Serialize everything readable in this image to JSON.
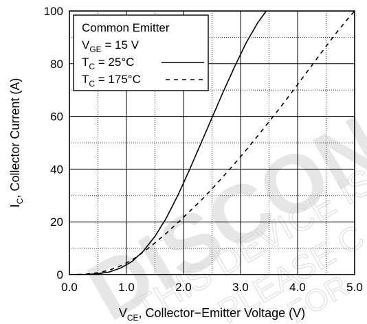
{
  "chart_data": {
    "type": "line",
    "title": "",
    "xlabel": {
      "main": "V",
      "sub": "CE",
      "rest": ", Collector−Emitter Voltage (V)"
    },
    "ylabel": {
      "main": "I",
      "sub": "C",
      "rest": ", Collector Current (A)"
    },
    "xlim": [
      0,
      5
    ],
    "ylim": [
      0,
      100
    ],
    "x_ticks": [
      "0.0",
      "1.0",
      "2.0",
      "3.0",
      "4.0",
      "5.0"
    ],
    "y_ticks": [
      "0",
      "20",
      "40",
      "60",
      "80",
      "100"
    ],
    "grid": "major solid, minor dotted",
    "legend": {
      "placement": "top-left",
      "header": "Common Emitter",
      "condition": {
        "main": "V",
        "sub": "GE",
        "rest": " = 15 V"
      }
    },
    "series": [
      {
        "name": {
          "main": "T",
          "sub": "C",
          "rest": " = 25°C"
        },
        "style": "solid",
        "x": [
          0.0,
          0.3,
          0.5,
          0.7,
          0.9,
          1.1,
          1.3,
          1.5,
          1.7,
          1.9,
          2.1,
          2.3,
          2.5,
          2.7,
          2.9,
          3.1,
          3.3,
          3.45
        ],
        "y": [
          0.0,
          0.05,
          0.3,
          1.0,
          2.5,
          5.0,
          9.0,
          14.5,
          21.5,
          30.0,
          39.5,
          49.5,
          59.5,
          69.5,
          79.0,
          88.0,
          95.5,
          100
        ]
      },
      {
        "name": {
          "main": "T",
          "sub": "C",
          "rest": " = 175°C"
        },
        "style": "dashed",
        "x": [
          0.0,
          0.3,
          0.5,
          0.7,
          0.9,
          1.1,
          1.3,
          1.5,
          1.7,
          1.9,
          2.1,
          2.3,
          2.5,
          2.7,
          2.9,
          3.1,
          3.3,
          3.5,
          3.7,
          3.9,
          4.1,
          4.3,
          4.5,
          4.7,
          4.9,
          5.0
        ],
        "y": [
          0.0,
          0.2,
          0.7,
          1.7,
          3.3,
          5.6,
          8.6,
          12.0,
          15.7,
          19.7,
          23.8,
          28.0,
          32.5,
          37.3,
          42.2,
          47.3,
          52.6,
          58.0,
          63.5,
          69.2,
          75.0,
          80.8,
          86.6,
          92.3,
          97.5,
          100
        ]
      }
    ],
    "colors": {
      "line": "#000000",
      "watermark": "#c8c8c8"
    }
  },
  "watermark": {
    "big": "DISCON",
    "line1": "THIS DEVICE IS NOT R",
    "line2": "PLEASE C",
    "line3": "FOR"
  }
}
